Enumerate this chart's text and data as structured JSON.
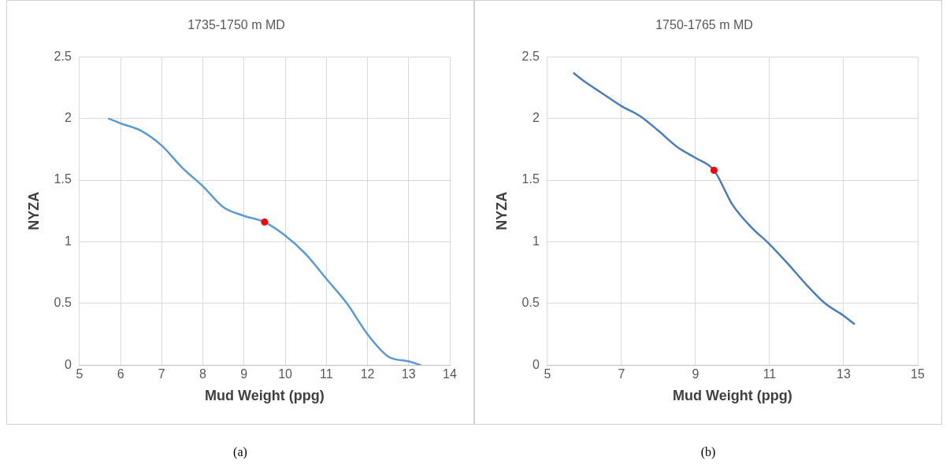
{
  "chart_data": [
    {
      "type": "line",
      "title": "1735-1750 m MD",
      "xlabel": "Mud Weight (ppg)",
      "ylabel": "NYZA",
      "xlim": [
        5,
        14
      ],
      "xticks": [
        5,
        6,
        7,
        8,
        9,
        10,
        11,
        12,
        13,
        14
      ],
      "ylim": [
        0,
        2.5
      ],
      "yticks": [
        0,
        0.5,
        1,
        1.5,
        2,
        2.5
      ],
      "grid": true,
      "annotations": [
        "(a)"
      ],
      "series": [
        {
          "color": "#5b9bd5",
          "marker": "none",
          "x": [
            5.7,
            6,
            6.5,
            7,
            7.5,
            8,
            8.5,
            9,
            9.5,
            10,
            10.5,
            11,
            11.5,
            12,
            12.5,
            13,
            13.3
          ],
          "values": [
            2.0,
            1.96,
            1.9,
            1.78,
            1.6,
            1.45,
            1.28,
            1.21,
            1.16,
            1.05,
            0.9,
            0.7,
            0.5,
            0.25,
            0.07,
            0.03,
            0
          ]
        },
        {
          "type": "scatter",
          "color": "#ff0000",
          "marker": "circle",
          "x": [
            9.5
          ],
          "values": [
            1.16
          ]
        }
      ]
    },
    {
      "type": "line",
      "title": "1750-1765 m MD",
      "xlabel": "Mud Weight (ppg)",
      "ylabel": "NYZA",
      "xlim": [
        5,
        15
      ],
      "xticks": [
        5,
        7,
        9,
        11,
        13,
        15
      ],
      "ylim": [
        0,
        2.5
      ],
      "yticks": [
        0,
        0.5,
        1,
        1.5,
        2,
        2.5
      ],
      "grid": true,
      "annotations": [
        "(b)"
      ],
      "series": [
        {
          "color": "#4a7ebb",
          "marker": "none",
          "x": [
            5.7,
            6,
            6.5,
            7,
            7.5,
            8,
            8.5,
            9,
            9.5,
            10,
            10.5,
            11,
            11.5,
            12,
            12.5,
            13,
            13.3
          ],
          "values": [
            2.37,
            2.3,
            2.2,
            2.1,
            2.02,
            1.9,
            1.77,
            1.68,
            1.58,
            1.3,
            1.12,
            0.98,
            0.82,
            0.65,
            0.5,
            0.4,
            0.33
          ]
        },
        {
          "type": "scatter",
          "color": "#ff0000",
          "marker": "circle",
          "x": [
            9.5
          ],
          "values": [
            1.58
          ]
        }
      ]
    }
  ]
}
